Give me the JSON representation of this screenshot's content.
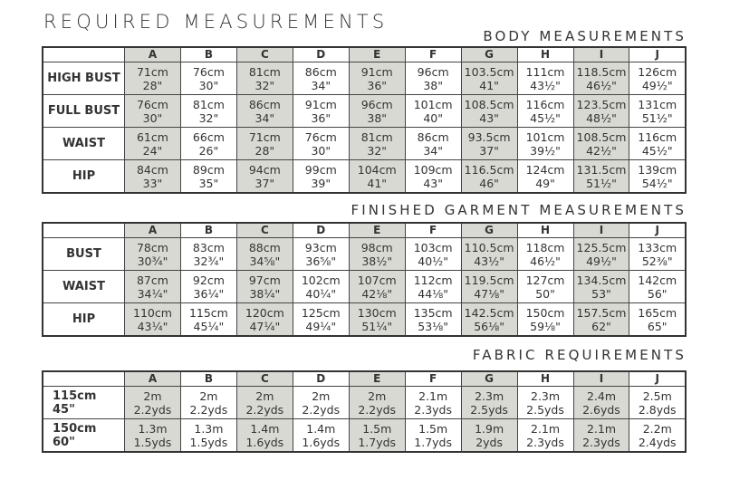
{
  "title": "REQUIRED MEASUREMENTS",
  "sizes": [
    "A",
    "B",
    "C",
    "D",
    "E",
    "F",
    "G",
    "H",
    "I",
    "J"
  ],
  "shade_color": "#d9d9d4",
  "body": {
    "title": "BODY MEASUREMENTS",
    "rows": [
      {
        "label": "HIGH BUST",
        "cells": [
          [
            "71cm",
            "28\""
          ],
          [
            "76cm",
            "30\""
          ],
          [
            "81cm",
            "32\""
          ],
          [
            "86cm",
            "34\""
          ],
          [
            "91cm",
            "36\""
          ],
          [
            "96cm",
            "38\""
          ],
          [
            "103.5cm",
            "41\""
          ],
          [
            "111cm",
            "43½\""
          ],
          [
            "118.5cm",
            "46½\""
          ],
          [
            "126cm",
            "49½\""
          ]
        ]
      },
      {
        "label": "FULL BUST",
        "cells": [
          [
            "76cm",
            "30\""
          ],
          [
            "81cm",
            "32\""
          ],
          [
            "86cm",
            "34\""
          ],
          [
            "91cm",
            "36\""
          ],
          [
            "96cm",
            "38\""
          ],
          [
            "101cm",
            "40\""
          ],
          [
            "108.5cm",
            "43\""
          ],
          [
            "116cm",
            "45½\""
          ],
          [
            "123.5cm",
            "48½\""
          ],
          [
            "131cm",
            "51½\""
          ]
        ]
      },
      {
        "label": "WAIST",
        "cells": [
          [
            "61cm",
            "24\""
          ],
          [
            "66cm",
            "26\""
          ],
          [
            "71cm",
            "28\""
          ],
          [
            "76cm",
            "30\""
          ],
          [
            "81cm",
            "32\""
          ],
          [
            "86cm",
            "34\""
          ],
          [
            "93.5cm",
            "37\""
          ],
          [
            "101cm",
            "39½\""
          ],
          [
            "108.5cm",
            "42½\""
          ],
          [
            "116cm",
            "45½\""
          ]
        ]
      },
      {
        "label": "HIP",
        "cells": [
          [
            "84cm",
            "33\""
          ],
          [
            "89cm",
            "35\""
          ],
          [
            "94cm",
            "37\""
          ],
          [
            "99cm",
            "39\""
          ],
          [
            "104cm",
            "41\""
          ],
          [
            "109cm",
            "43\""
          ],
          [
            "116.5cm",
            "46\""
          ],
          [
            "124cm",
            "49\""
          ],
          [
            "131.5cm",
            "51½\""
          ],
          [
            "139cm",
            "54½\""
          ]
        ]
      }
    ]
  },
  "finished": {
    "title": "FINISHED GARMENT MEASUREMENTS",
    "rows": [
      {
        "label": "BUST",
        "cells": [
          [
            "78cm",
            "30¾\""
          ],
          [
            "83cm",
            "32¾\""
          ],
          [
            "88cm",
            "34⅝\""
          ],
          [
            "93cm",
            "36⅝\""
          ],
          [
            "98cm",
            "38½\""
          ],
          [
            "103cm",
            "40½\""
          ],
          [
            "110.5cm",
            "43½\""
          ],
          [
            "118cm",
            "46½\""
          ],
          [
            "125.5cm",
            "49½\""
          ],
          [
            "133cm",
            "52⅜\""
          ]
        ]
      },
      {
        "label": "WAIST",
        "cells": [
          [
            "87cm",
            "34¼\""
          ],
          [
            "92cm",
            "36¼\""
          ],
          [
            "97cm",
            "38¼\""
          ],
          [
            "102cm",
            "40¼\""
          ],
          [
            "107cm",
            "42⅛\""
          ],
          [
            "112cm",
            "44⅛\""
          ],
          [
            "119.5cm",
            "47⅛\""
          ],
          [
            "127cm",
            "50\""
          ],
          [
            "134.5cm",
            "53\""
          ],
          [
            "142cm",
            "56\""
          ]
        ]
      },
      {
        "label": "HIP",
        "cells": [
          [
            "110cm",
            "43¼\""
          ],
          [
            "115cm",
            "45¼\""
          ],
          [
            "120cm",
            "47¼\""
          ],
          [
            "125cm",
            "49¼\""
          ],
          [
            "130cm",
            "51¼\""
          ],
          [
            "135cm",
            "53⅛\""
          ],
          [
            "142.5cm",
            "56⅛\""
          ],
          [
            "150cm",
            "59⅛\""
          ],
          [
            "157.5cm",
            "62\""
          ],
          [
            "165cm",
            "65\""
          ]
        ]
      }
    ]
  },
  "fabric": {
    "title": "FABRIC REQUIREMENTS",
    "rows": [
      {
        "label": [
          "115cm",
          "45\""
        ],
        "cells": [
          [
            "2m",
            "2.2yds"
          ],
          [
            "2m",
            "2.2yds"
          ],
          [
            "2m",
            "2.2yds"
          ],
          [
            "2m",
            "2.2yds"
          ],
          [
            "2m",
            "2.2yds"
          ],
          [
            "2.1m",
            "2.3yds"
          ],
          [
            "2.3m",
            "2.5yds"
          ],
          [
            "2.3m",
            "2.5yds"
          ],
          [
            "2.4m",
            "2.6yds"
          ],
          [
            "2.5m",
            "2.8yds"
          ]
        ]
      },
      {
        "label": [
          "150cm",
          "60\""
        ],
        "cells": [
          [
            "1.3m",
            "1.5yds"
          ],
          [
            "1.3m",
            "1.5yds"
          ],
          [
            "1.4m",
            "1.6yds"
          ],
          [
            "1.4m",
            "1.6yds"
          ],
          [
            "1.5m",
            "1.7yds"
          ],
          [
            "1.5m",
            "1.7yds"
          ],
          [
            "1.9m",
            "2yds"
          ],
          [
            "2.1m",
            "2.3yds"
          ],
          [
            "2.1m",
            "2.3yds"
          ],
          [
            "2.2m",
            "2.4yds"
          ]
        ]
      }
    ]
  }
}
